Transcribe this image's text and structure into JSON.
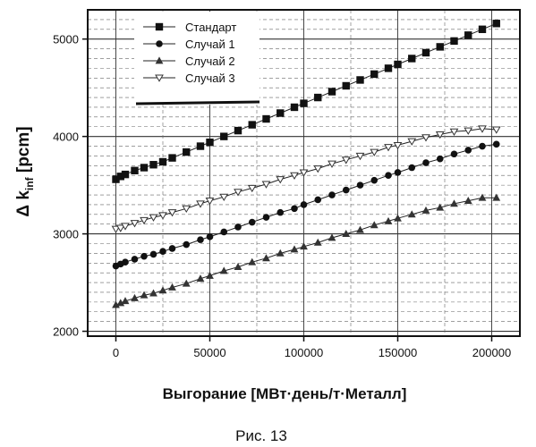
{
  "figure": {
    "caption": "Рис.  13"
  },
  "chart_data": {
    "type": "scatter",
    "xlabel": "Выгорание [МВт·день/т·Металл]",
    "ylabel_main": "Δ k",
    "ylabel_sub": "inf",
    "ylabel_unit": " [pcm]",
    "xlim": [
      -15000,
      215000
    ],
    "ylim": [
      1950,
      5300
    ],
    "x_ticks": [
      0,
      50000,
      100000,
      150000,
      200000
    ],
    "x_tick_labels": [
      "0",
      "50000",
      "100000",
      "150000",
      "200000"
    ],
    "y_ticks": [
      2000,
      3000,
      4000,
      5000
    ],
    "y_tick_labels": [
      "2000",
      "3000",
      "4000",
      "5000"
    ],
    "grid": true,
    "legend_position": "top-left",
    "x": [
      0,
      2500,
      5000,
      10000,
      15000,
      20000,
      25000,
      30000,
      37500,
      45000,
      50000,
      57500,
      65000,
      72500,
      80000,
      87500,
      95000,
      100000,
      107500,
      115000,
      122500,
      130000,
      137500,
      145000,
      150000,
      157500,
      165000,
      172500,
      180000,
      187500,
      195000,
      202500
    ],
    "series": [
      {
        "name": "Стандарт",
        "marker": "square",
        "values": [
          3560,
          3590,
          3610,
          3650,
          3680,
          3710,
          3740,
          3780,
          3840,
          3900,
          3940,
          4000,
          4060,
          4120,
          4180,
          4240,
          4300,
          4340,
          4400,
          4460,
          4520,
          4580,
          4640,
          4700,
          4740,
          4800,
          4860,
          4920,
          4980,
          5040,
          5100,
          5160
        ]
      },
      {
        "name": "Случай 1",
        "marker": "circle",
        "values": [
          2670,
          2690,
          2710,
          2740,
          2770,
          2790,
          2820,
          2850,
          2890,
          2940,
          2970,
          3020,
          3070,
          3120,
          3170,
          3220,
          3260,
          3300,
          3350,
          3400,
          3450,
          3500,
          3550,
          3600,
          3630,
          3680,
          3730,
          3770,
          3820,
          3860,
          3900,
          3920
        ]
      },
      {
        "name": "Случай 2",
        "marker": "triangle-up",
        "values": [
          2270,
          2290,
          2310,
          2340,
          2370,
          2390,
          2420,
          2450,
          2490,
          2540,
          2570,
          2620,
          2660,
          2710,
          2750,
          2800,
          2840,
          2870,
          2910,
          2960,
          3000,
          3040,
          3090,
          3130,
          3160,
          3200,
          3240,
          3270,
          3310,
          3340,
          3370,
          3370
        ]
      },
      {
        "name": "Случай 3",
        "marker": "triangle-down",
        "values": [
          3050,
          3060,
          3080,
          3110,
          3140,
          3170,
          3190,
          3220,
          3260,
          3310,
          3340,
          3380,
          3430,
          3470,
          3510,
          3560,
          3600,
          3630,
          3670,
          3720,
          3760,
          3800,
          3840,
          3890,
          3910,
          3950,
          3990,
          4020,
          4050,
          4060,
          4080,
          4070
        ]
      }
    ]
  }
}
